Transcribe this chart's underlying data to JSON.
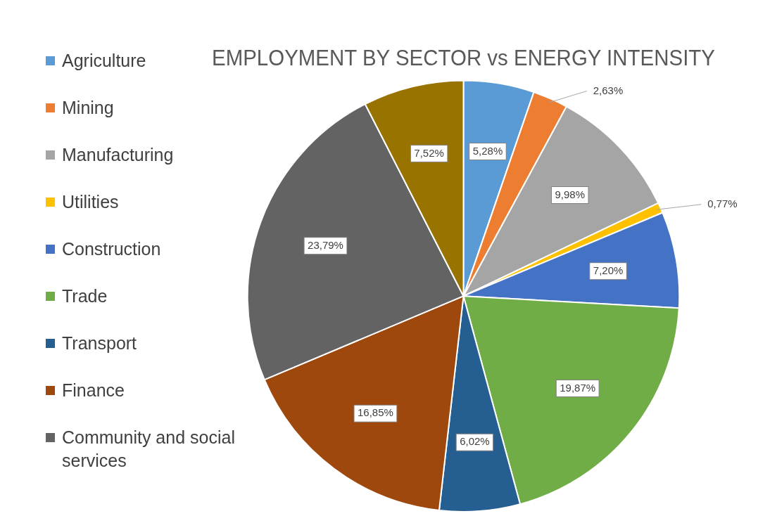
{
  "chart_data": {
    "type": "pie",
    "title": "EMPLOYMENT BY SECTOR vs ENERGY INTENSITY",
    "categories": [
      "Agriculture",
      "Mining",
      "Manufacturing",
      "Utilities",
      "Construction",
      "Trade",
      "Transport",
      "Finance",
      "Community and social services",
      null
    ],
    "values": [
      5.28,
      2.63,
      9.98,
      0.77,
      7.2,
      19.87,
      6.02,
      16.85,
      23.79,
      7.52
    ],
    "colors": [
      "#5b9bd5",
      "#ed7d31",
      "#a5a5a5",
      "#ffc000",
      "#4472c4",
      "#70ad47",
      "#255e91",
      "#9e480e",
      "#636363",
      "#997300"
    ],
    "value_labels": [
      "5,28%",
      "2,63%",
      "9,98%",
      "0,77%",
      "7,20%",
      "19,87%",
      "6,02%",
      "16,85%",
      "23,79%",
      "7,52%"
    ],
    "legend": "left"
  }
}
